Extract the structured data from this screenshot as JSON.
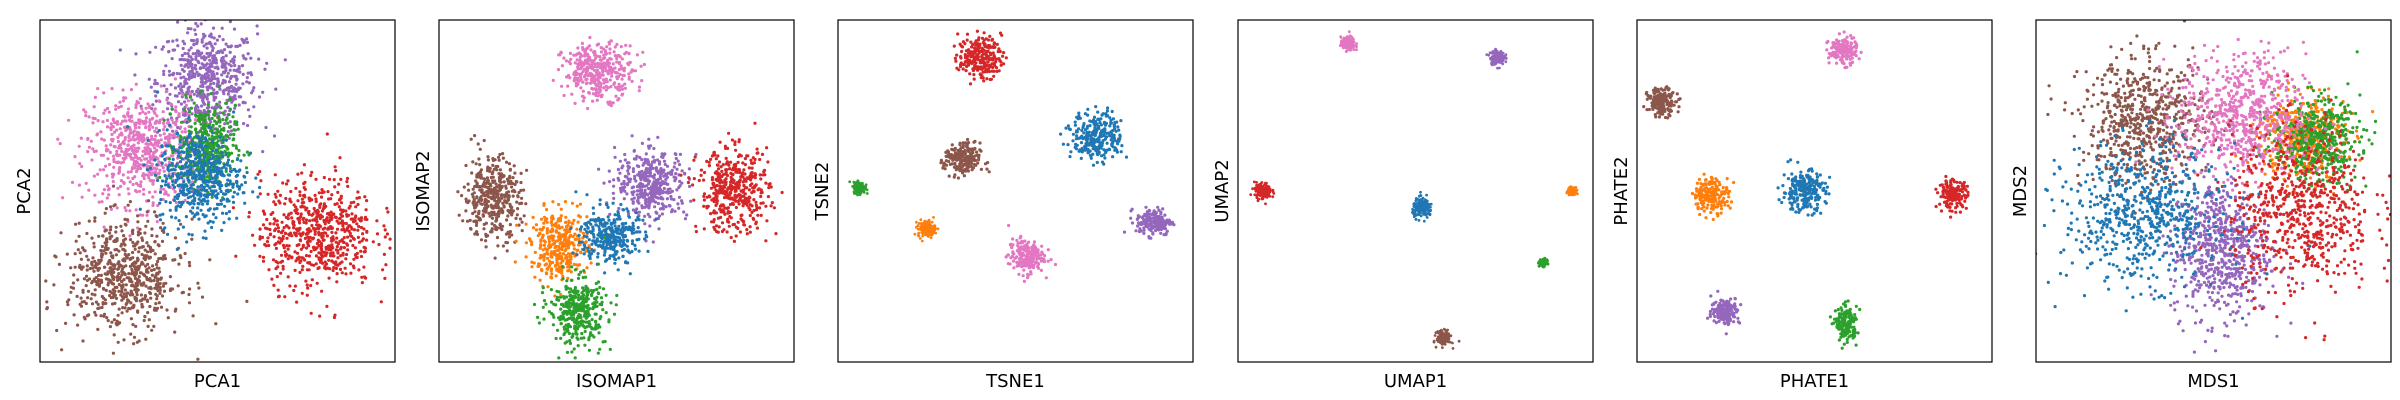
{
  "chart_data": [
    {
      "type": "scatter",
      "xlabel": "PCA1",
      "ylabel": "PCA2",
      "xlim": [
        0,
        100
      ],
      "ylim": [
        0,
        100
      ],
      "ticks": "none",
      "series": [
        {
          "color": "#9467bd",
          "center": [
            47,
            82
          ],
          "spread": [
            7,
            8
          ]
        },
        {
          "color": "#e377c2",
          "center": [
            29,
            62
          ],
          "spread": [
            8,
            8
          ]
        },
        {
          "color": "#2ca02c",
          "center": [
            47,
            63
          ],
          "spread": [
            4,
            6
          ]
        },
        {
          "color": "#1f77b4",
          "center": [
            45,
            54
          ],
          "spread": [
            6,
            7
          ]
        },
        {
          "color": "#d62728",
          "center": [
            78,
            38
          ],
          "spread": [
            8,
            8
          ]
        },
        {
          "color": "#8c564b",
          "center": [
            24,
            25
          ],
          "spread": [
            8,
            8
          ]
        }
      ]
    },
    {
      "type": "scatter",
      "xlabel": "ISOMAP1",
      "ylabel": "ISOMAP2",
      "xlim": [
        0,
        100
      ],
      "ylim": [
        0,
        100
      ],
      "ticks": "none",
      "series": [
        {
          "color": "#e377c2",
          "center": [
            45,
            85
          ],
          "spread": [
            5,
            4
          ]
        },
        {
          "color": "#8c564b",
          "center": [
            15,
            48
          ],
          "spread": [
            4,
            6
          ]
        },
        {
          "color": "#9467bd",
          "center": [
            60,
            52
          ],
          "spread": [
            5,
            5
          ]
        },
        {
          "color": "#d62728",
          "center": [
            83,
            50
          ],
          "spread": [
            5,
            6
          ]
        },
        {
          "color": "#ff7f0e",
          "center": [
            34,
            34
          ],
          "spread": [
            4,
            5
          ]
        },
        {
          "color": "#1f77b4",
          "center": [
            48,
            37
          ],
          "spread": [
            4,
            4
          ]
        },
        {
          "color": "#2ca02c",
          "center": [
            39,
            15
          ],
          "spread": [
            4,
            5
          ]
        }
      ]
    },
    {
      "type": "scatter",
      "xlabel": "TSNE1",
      "ylabel": "TSNE2",
      "xlim": [
        0,
        100
      ],
      "ylim": [
        0,
        100
      ],
      "ticks": "none",
      "series": [
        {
          "color": "#d62728",
          "center": [
            40,
            89
          ],
          "spread": [
            3,
            3
          ]
        },
        {
          "color": "#1f77b4",
          "center": [
            73,
            66
          ],
          "spread": [
            3.5,
            3.5
          ]
        },
        {
          "color": "#8c564b",
          "center": [
            35,
            59
          ],
          "spread": [
            2.5,
            2.5
          ]
        },
        {
          "color": "#9467bd",
          "center": [
            89,
            41
          ],
          "spread": [
            2.5,
            2
          ]
        },
        {
          "color": "#2ca02c",
          "center": [
            6,
            51
          ],
          "spread": [
            0.8,
            0.8
          ]
        },
        {
          "color": "#ff7f0e",
          "center": [
            25,
            39
          ],
          "spread": [
            1.2,
            1.2
          ]
        },
        {
          "color": "#e377c2",
          "center": [
            53,
            31
          ],
          "spread": [
            2.5,
            2.5
          ]
        }
      ]
    },
    {
      "type": "scatter",
      "xlabel": "UMAP1",
      "ylabel": "UMAP2",
      "xlim": [
        0,
        100
      ],
      "ylim": [
        0,
        100
      ],
      "ticks": "none",
      "series": [
        {
          "color": "#e377c2",
          "center": [
            31,
            93
          ],
          "spread": [
            1,
            1
          ]
        },
        {
          "color": "#9467bd",
          "center": [
            73,
            89
          ],
          "spread": [
            1,
            1
          ]
        },
        {
          "color": "#d62728",
          "center": [
            7,
            50
          ],
          "spread": [
            1.2,
            1.2
          ]
        },
        {
          "color": "#1f77b4",
          "center": [
            52,
            45
          ],
          "spread": [
            1.4,
            1.4
          ]
        },
        {
          "color": "#ff7f0e",
          "center": [
            94,
            50
          ],
          "spread": [
            0.5,
            0.5
          ]
        },
        {
          "color": "#2ca02c",
          "center": [
            86,
            29
          ],
          "spread": [
            0.5,
            0.5
          ]
        },
        {
          "color": "#8c564b",
          "center": [
            58,
            7
          ],
          "spread": [
            1,
            1
          ]
        }
      ]
    },
    {
      "type": "scatter",
      "xlabel": "PHATE1",
      "ylabel": "PHATE2",
      "xlim": [
        0,
        100
      ],
      "ylim": [
        0,
        100
      ],
      "ticks": "none",
      "series": [
        {
          "color": "#e377c2",
          "center": [
            58,
            91
          ],
          "spread": [
            2,
            2
          ]
        },
        {
          "color": "#8c564b",
          "center": [
            7,
            76
          ],
          "spread": [
            2,
            2
          ]
        },
        {
          "color": "#ff7f0e",
          "center": [
            21,
            49
          ],
          "spread": [
            2.5,
            2.5
          ]
        },
        {
          "color": "#1f77b4",
          "center": [
            47,
            50
          ],
          "spread": [
            3,
            3
          ]
        },
        {
          "color": "#d62728",
          "center": [
            89,
            49
          ],
          "spread": [
            2,
            2
          ]
        },
        {
          "color": "#9467bd",
          "center": [
            25,
            15
          ],
          "spread": [
            2,
            2
          ]
        },
        {
          "color": "#2ca02c",
          "center": [
            59,
            11
          ],
          "spread": [
            1.5,
            2.5
          ]
        }
      ]
    },
    {
      "type": "scatter",
      "xlabel": "MDS1",
      "ylabel": "MDS2",
      "xlim": [
        0,
        100
      ],
      "ylim": [
        0,
        100
      ],
      "ticks": "none",
      "series": [
        {
          "color": "#8c564b",
          "center": [
            31,
            70
          ],
          "spread": [
            9,
            9
          ]
        },
        {
          "color": "#ff7f0e",
          "center": [
            75,
            66
          ],
          "spread": [
            6,
            6
          ]
        },
        {
          "color": "#2ca02c",
          "center": [
            79,
            65
          ],
          "spread": [
            6,
            6
          ]
        },
        {
          "color": "#e377c2",
          "center": [
            58,
            72
          ],
          "spread": [
            9,
            9
          ]
        },
        {
          "color": "#9467bd",
          "center": [
            52,
            33
          ],
          "spread": [
            7,
            10
          ]
        },
        {
          "color": "#d62728",
          "center": [
            75,
            44
          ],
          "spread": [
            10,
            12
          ]
        },
        {
          "color": "#1f77b4",
          "center": [
            30,
            43
          ],
          "spread": [
            11,
            10
          ]
        }
      ]
    }
  ]
}
